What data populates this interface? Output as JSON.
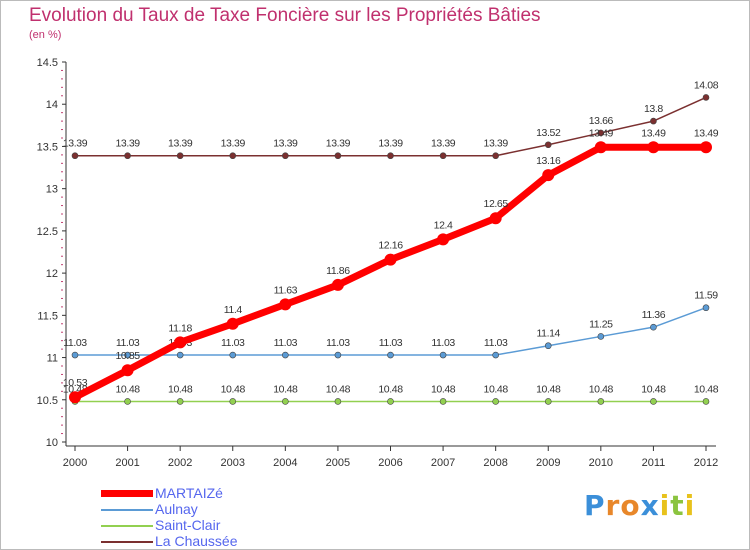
{
  "title": "Evolution du Taux de Taxe Foncière sur les Propriétés Bâties",
  "unit": "(en %)",
  "brand": {
    "letters": [
      "P",
      "r",
      "o",
      "x",
      "i",
      "t",
      "i"
    ],
    "colors": [
      "#3b8fd9",
      "#e8872a",
      "#e8872a",
      "#3b8fd9",
      "#e8c21c",
      "#8bc43f",
      "#e8c21c"
    ]
  },
  "chart_data": {
    "type": "line",
    "x": [
      "2000",
      "2001",
      "2002",
      "2003",
      "2004",
      "2005",
      "2006",
      "2007",
      "2008",
      "2009",
      "2010",
      "2011",
      "2012"
    ],
    "ylim": [
      10,
      14.5
    ],
    "yticks": [
      "10",
      "10.5",
      "11",
      "11.5",
      "12",
      "12.5",
      "13",
      "13.5",
      "14",
      "14.5"
    ],
    "grid": false,
    "legend_position": "bottom-left",
    "series": [
      {
        "name": "MARTAIZé",
        "color": "#ff0000",
        "labels": [
          "10.53",
          "10.85",
          "11.18",
          "11.4",
          "11.63",
          "11.86",
          "12.16",
          "12.4",
          "12.65",
          "13.16",
          "13.49",
          "13.49",
          "13.49"
        ],
        "values": [
          10.53,
          10.85,
          11.18,
          11.4,
          11.63,
          11.86,
          12.16,
          12.4,
          12.65,
          13.16,
          13.49,
          13.49,
          13.49
        ]
      },
      {
        "name": "Aulnay",
        "color": "#5b9bd5",
        "labels": [
          "11.03",
          "11.03",
          "11.03",
          "11.03",
          "11.03",
          "11.03",
          "11.03",
          "11.03",
          "11.03",
          "11.14",
          "11.25",
          "11.36",
          "11.59"
        ],
        "values": [
          11.03,
          11.03,
          11.03,
          11.03,
          11.03,
          11.03,
          11.03,
          11.03,
          11.03,
          11.14,
          11.25,
          11.36,
          11.59
        ]
      },
      {
        "name": "Saint-Clair",
        "color": "#92d050",
        "labels": [
          "10.48",
          "10.48",
          "10.48",
          "10.48",
          "10.48",
          "10.48",
          "10.48",
          "10.48",
          "10.48",
          "10.48",
          "10.48",
          "10.48",
          "10.48"
        ],
        "values": [
          10.48,
          10.48,
          10.48,
          10.48,
          10.48,
          10.48,
          10.48,
          10.48,
          10.48,
          10.48,
          10.48,
          10.48,
          10.48
        ]
      },
      {
        "name": "La Chaussée",
        "color": "#7b3030",
        "labels": [
          "13.39",
          "13.39",
          "13.39",
          "13.39",
          "13.39",
          "13.39",
          "13.39",
          "13.39",
          "13.39",
          "13.52",
          "13.66",
          "13.8",
          "14.08"
        ],
        "values": [
          13.39,
          13.39,
          13.39,
          13.39,
          13.39,
          13.39,
          13.39,
          13.39,
          13.39,
          13.52,
          13.66,
          13.8,
          14.08
        ]
      }
    ]
  }
}
